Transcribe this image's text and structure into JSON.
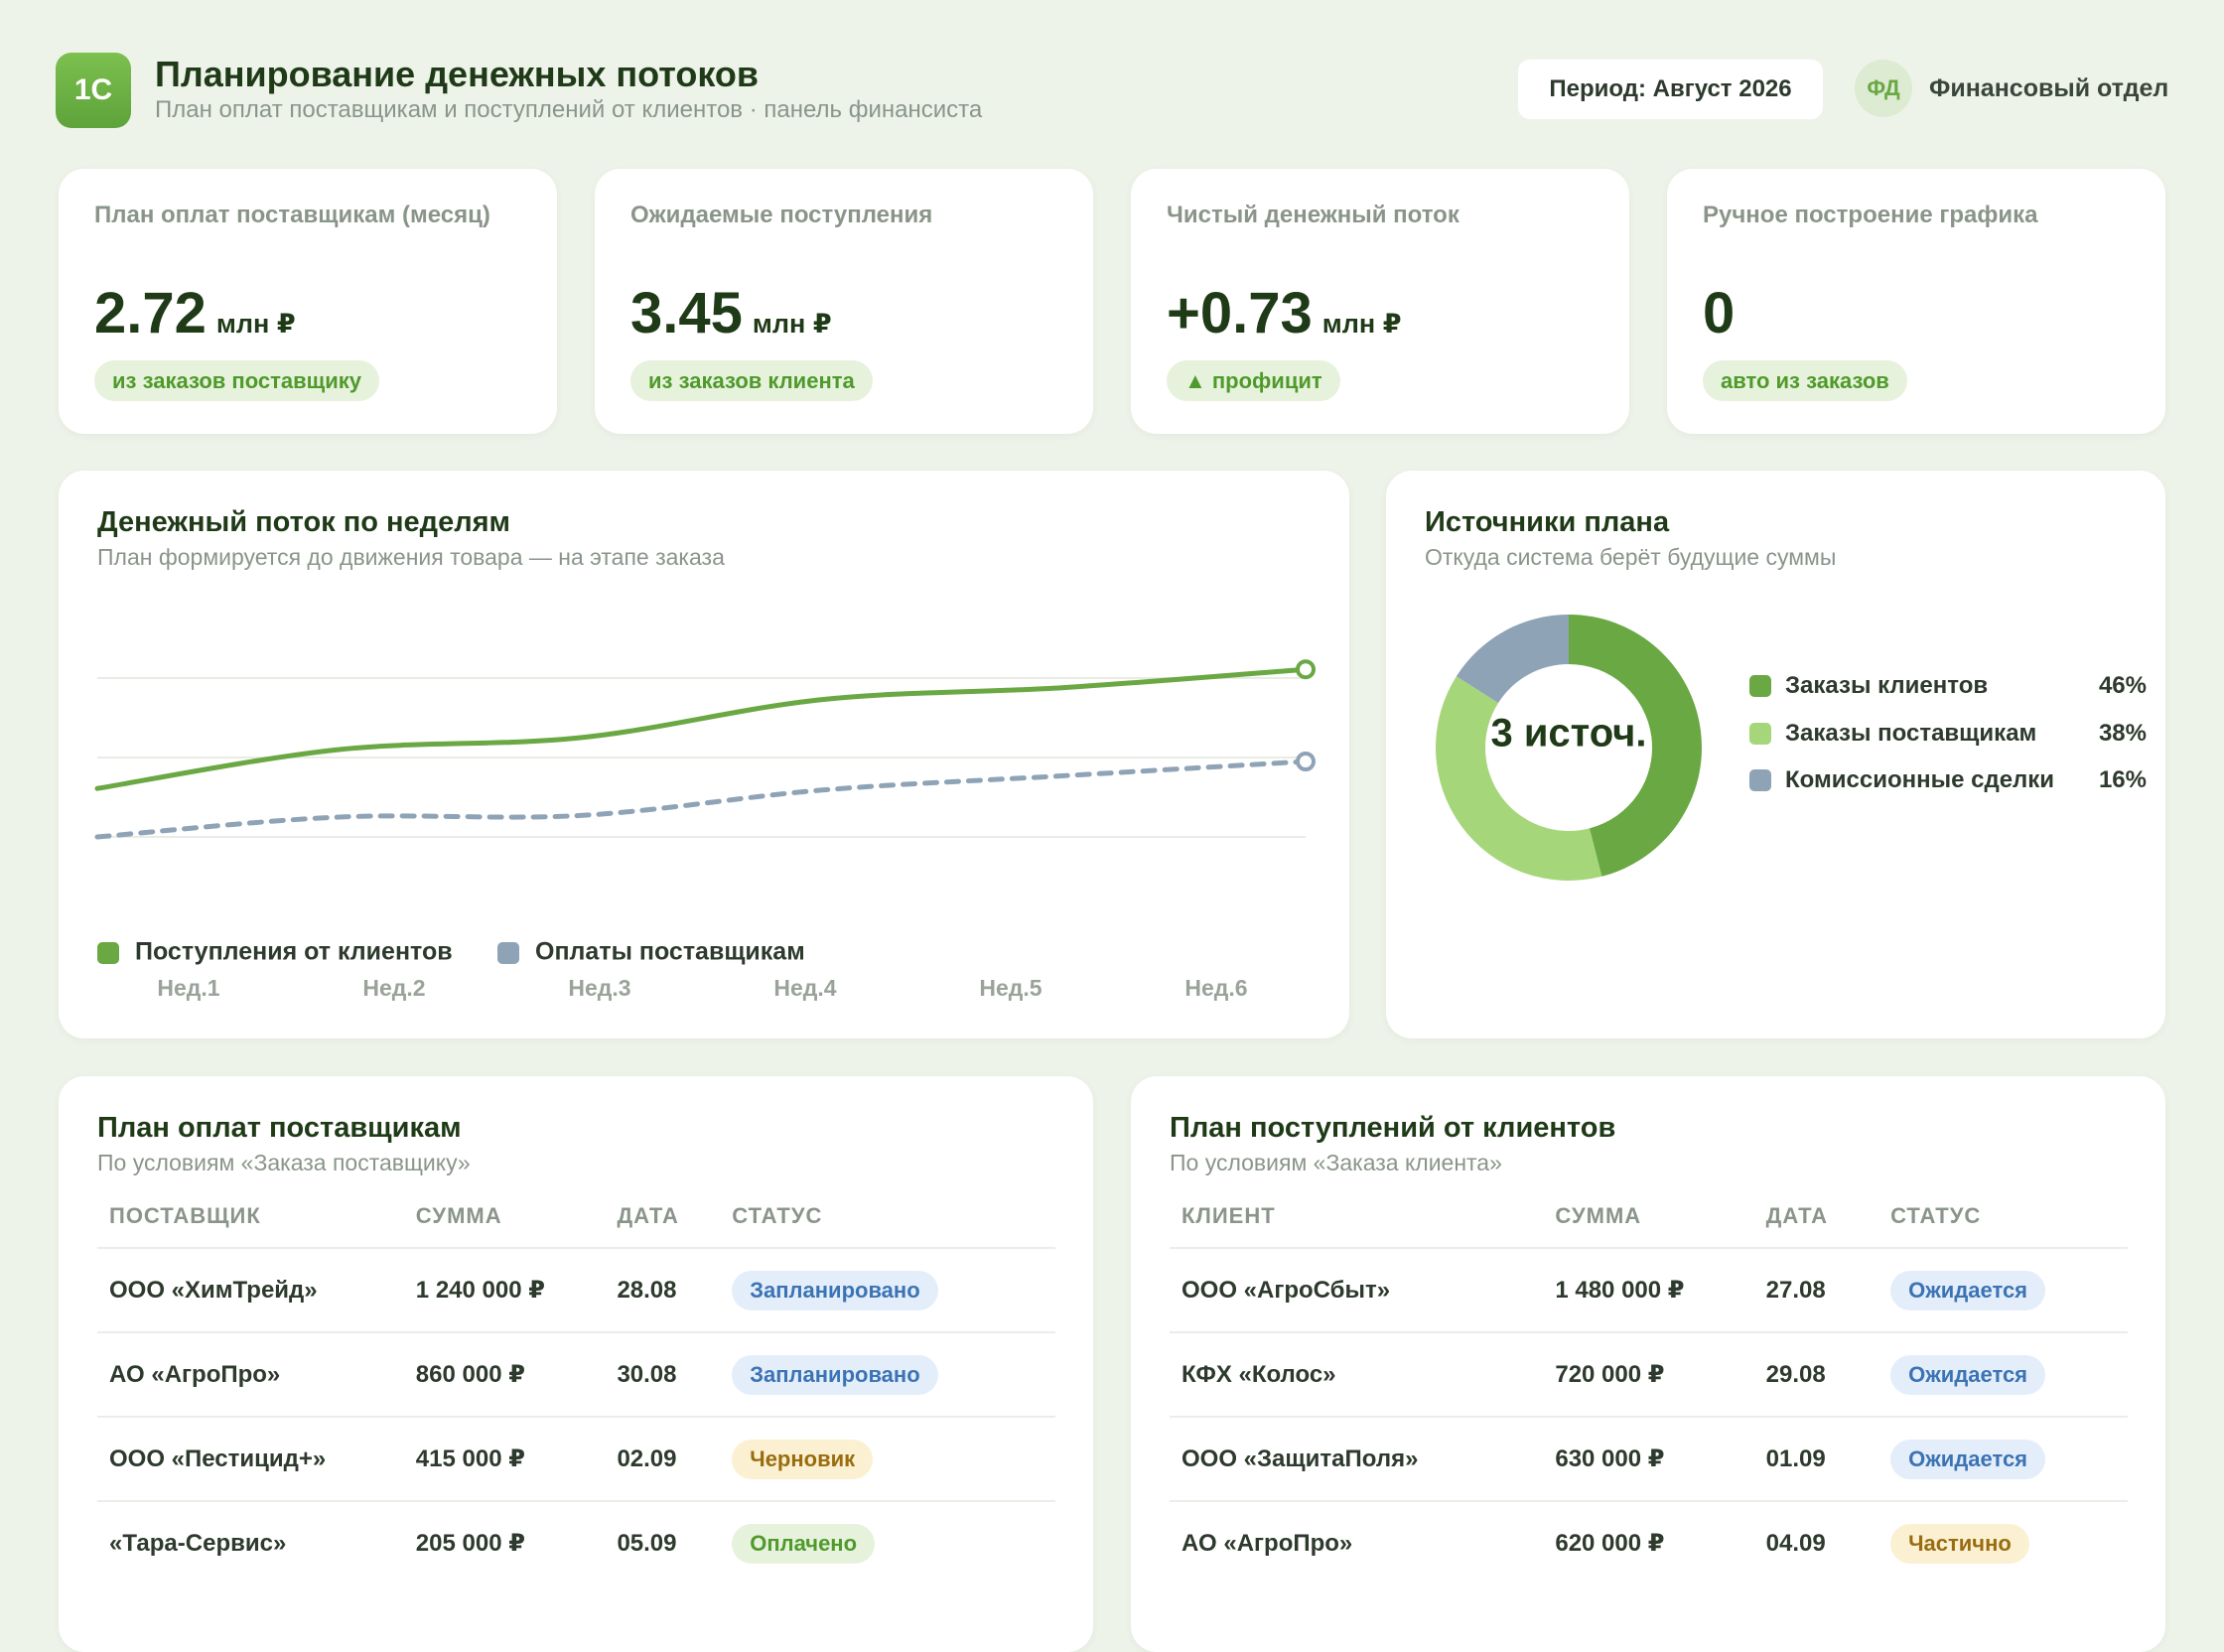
{
  "header": {
    "logo": "1С",
    "title": "Планирование денежных потоков",
    "subtitle": "План оплат поставщикам и поступлений от клиентов · панель финансиста",
    "period": "Период: Август 2026",
    "avatar": "ФД",
    "user": "Финансовый отдел"
  },
  "kpis": [
    {
      "label": "План оплат поставщикам (месяц)",
      "value": "2.72",
      "unit": "млн ₽",
      "badge": "из заказов поставщику"
    },
    {
      "label": "Ожидаемые поступления",
      "value": "3.45",
      "unit": "млн ₽",
      "badge": "из заказов клиента"
    },
    {
      "label": "Чистый денежный поток",
      "value": "+0.73",
      "unit": "млн ₽",
      "badge": "▲ профицит"
    },
    {
      "label": "Ручное построение графика",
      "value": "0",
      "badge": "авто из заказов"
    }
  ],
  "chart_data": [
    {
      "type": "line",
      "title": "Денежный поток по неделям",
      "subtitle": "План формируется до движения товара — на этапе заказа",
      "categories": [
        "Нед.1",
        "Нед.2",
        "Нед.3",
        "Нед.4",
        "Нед.5",
        "Нед.6"
      ],
      "series": [
        {
          "name": "Поступления от клиентов",
          "color": "#6aa843",
          "values": [
            1.61,
            2.1,
            2.25,
            2.73,
            2.88,
            3.11
          ]
        },
        {
          "name": "Оплаты поставщикам",
          "color": "#8fa3b6",
          "dashed": true,
          "values": [
            1.0,
            1.25,
            1.27,
            1.59,
            1.77,
            1.95
          ]
        }
      ],
      "ylim": [
        0,
        4
      ],
      "grid": true
    },
    {
      "type": "pie",
      "title": "Источники плана",
      "subtitle": "Откуда система берёт будущие суммы",
      "center_label": "3 источ.",
      "categories": [
        "Заказы клиентов",
        "Заказы поставщикам",
        "Комиссионные сделки"
      ],
      "values": [
        46,
        38,
        16
      ],
      "value_labels": [
        "46%",
        "38%",
        "16%"
      ],
      "colors": [
        "#6aa843",
        "#a6d67a",
        "#8fa3b6"
      ]
    }
  ],
  "tables": [
    {
      "title": "План оплат поставщикам",
      "subtitle": "По условиям «Заказа поставщику»",
      "columns": [
        "ПОСТАВЩИК",
        "СУММА",
        "ДАТА",
        "СТАТУС"
      ],
      "rows": [
        {
          "cells": [
            "ООО «ХимТрейд»",
            "1 240 000 ₽",
            "28.08",
            "Запланировано"
          ],
          "status_color": "blue"
        },
        {
          "cells": [
            "АО «АгроПро»",
            "860 000 ₽",
            "30.08",
            "Запланировано"
          ],
          "status_color": "blue"
        },
        {
          "cells": [
            "ООО «Пестицид+»",
            "415 000 ₽",
            "02.09",
            "Черновик"
          ],
          "status_color": "yellow"
        },
        {
          "cells": [
            "«Тара-Сервис»",
            "205 000 ₽",
            "05.09",
            "Оплачено"
          ],
          "status_color": "green"
        }
      ]
    },
    {
      "title": "План поступлений от клиентов",
      "subtitle": "По условиям «Заказа клиента»",
      "columns": [
        "КЛИЕНТ",
        "СУММА",
        "ДАТА",
        "СТАТУС"
      ],
      "rows": [
        {
          "cells": [
            "ООО «АгроСбыт»",
            "1 480 000 ₽",
            "27.08",
            "Ожидается"
          ],
          "status_color": "blue"
        },
        {
          "cells": [
            "КФХ «Колос»",
            "720 000 ₽",
            "29.08",
            "Ожидается"
          ],
          "status_color": "blue"
        },
        {
          "cells": [
            "ООО «ЗащитаПоля»",
            "630 000 ₽",
            "01.09",
            "Ожидается"
          ],
          "status_color": "blue"
        },
        {
          "cells": [
            "АО «АгроПро»",
            "620 000 ₽",
            "04.09",
            "Частично"
          ],
          "status_color": "yellow"
        }
      ]
    }
  ]
}
